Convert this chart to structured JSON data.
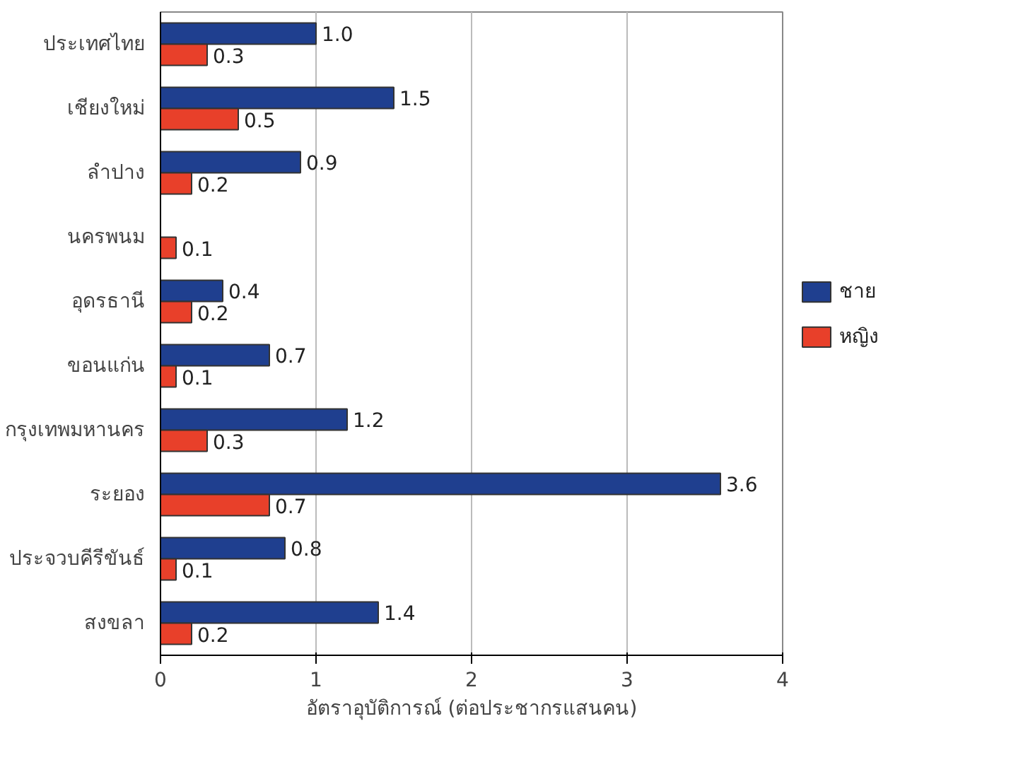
{
  "chart_data": {
    "type": "bar",
    "orientation": "horizontal",
    "xlabel": "อัตราอุบัติการณ์ (ต่อประชากรแสนคน)",
    "categories": [
      "ประเทศไทย",
      "เชียงใหม่",
      "ลำปาง",
      "นครพนม",
      "อุดรธานี",
      "ขอนแก่น",
      "กรุงเทพมหานคร",
      "ระยอง",
      "ประจวบคีรีขันธ์",
      "สงขลา"
    ],
    "series": [
      {
        "name": "ชาย",
        "color": "#1f3f8f",
        "values": [
          1.0,
          1.5,
          0.9,
          null,
          0.4,
          0.7,
          1.2,
          3.6,
          0.8,
          1.4
        ],
        "value_labels": [
          "1.0",
          "1.5",
          "0.9",
          null,
          "0.4",
          "0.7",
          "1.2",
          "3.6",
          "0.8",
          "1.4"
        ]
      },
      {
        "name": "หญิง",
        "color": "#e8402a",
        "values": [
          0.3,
          0.5,
          0.2,
          0.1,
          0.2,
          0.1,
          0.3,
          0.7,
          0.1,
          0.2
        ],
        "value_labels": [
          "0.3",
          "0.5",
          "0.2",
          "0.1",
          "0.2",
          "0.1",
          "0.3",
          "0.7",
          "0.1",
          "0.2"
        ]
      }
    ],
    "xlim": [
      0,
      4
    ],
    "xticks": [
      0,
      1,
      2,
      3,
      4
    ],
    "grid": "x",
    "legend": "right"
  }
}
